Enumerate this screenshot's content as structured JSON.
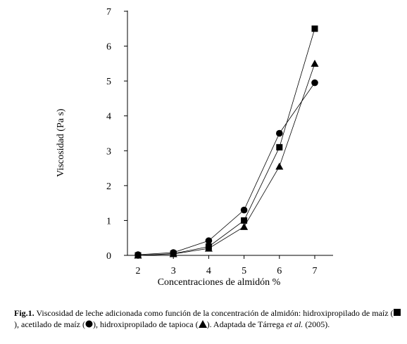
{
  "chart_data": {
    "type": "line",
    "x": [
      2,
      3,
      4,
      5,
      6,
      7
    ],
    "xlabel": "Concentraciones de almidón %",
    "ylabel": "Viscosidad (Pa s)",
    "xlim": [
      2,
      7
    ],
    "ylim": [
      0,
      7
    ],
    "xticks": [
      2,
      3,
      4,
      5,
      6,
      7
    ],
    "yticks": [
      0,
      1,
      2,
      3,
      4,
      5,
      6,
      7
    ],
    "grid": false,
    "legend": "none",
    "series": [
      {
        "marker": "square",
        "values": [
          0.0,
          0.05,
          0.25,
          1.0,
          3.1,
          6.5
        ]
      },
      {
        "marker": "circle",
        "values": [
          0.02,
          0.08,
          0.42,
          1.3,
          3.5,
          4.95
        ]
      },
      {
        "marker": "triangle",
        "values": [
          0.0,
          0.04,
          0.2,
          0.82,
          2.55,
          5.5
        ]
      }
    ]
  },
  "caption": {
    "label": "Fig.1.",
    "text1": " Viscosidad de leche adicionada como función de la concentración de almidón: hidroxipropilado de maíz (",
    "text2": "), acetilado de maíz (",
    "text3": "), hidroxipropilado de tapioca (",
    "text4": "). Adaptada de Tárrega ",
    "etal": "et al.",
    "text5": " (2005)."
  }
}
